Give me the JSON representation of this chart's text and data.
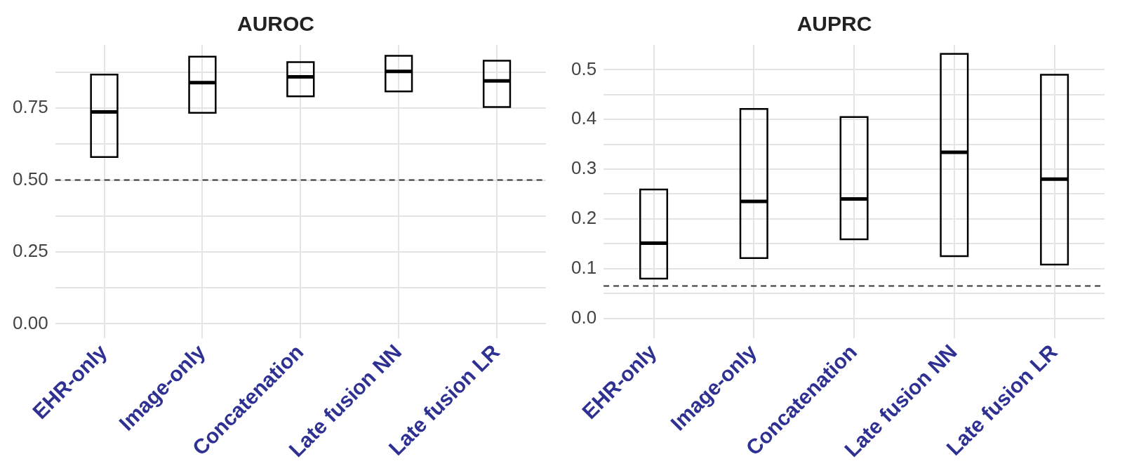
{
  "chart_data": [
    {
      "type": "box",
      "title": "AUROC",
      "categories": [
        "EHR-only",
        "Image-only",
        "Concatenation",
        "Late fusion NN",
        "Late fusion LR"
      ],
      "series": [
        {
          "color": "#000000",
          "boxes": [
            {
              "low": 0.58,
              "q1": 0.58,
              "median": 0.737,
              "q3": 0.867,
              "high": 0.867
            },
            {
              "low": 0.734,
              "q1": 0.734,
              "median": 0.839,
              "q3": 0.929,
              "high": 0.929
            },
            {
              "low": 0.791,
              "q1": 0.791,
              "median": 0.859,
              "q3": 0.91,
              "high": 0.91
            },
            {
              "low": 0.808,
              "q1": 0.808,
              "median": 0.878,
              "q3": 0.932,
              "high": 0.932
            },
            {
              "low": 0.754,
              "q1": 0.754,
              "median": 0.845,
              "q3": 0.915,
              "high": 0.915
            }
          ]
        }
      ],
      "ylim": [
        -0.05,
        0.97
      ],
      "yticks": [
        {
          "value": 0,
          "label": "0.00"
        },
        {
          "value": 0.125,
          "label": null
        },
        0.25,
        {
          "value": 0.375,
          "label": null
        },
        {
          "value": 0.5,
          "label": "0.50"
        },
        {
          "value": 0.625,
          "label": null
        },
        0.75,
        {
          "value": 0.875,
          "label": null
        }
      ],
      "ref_lines": [
        {
          "axis": "y",
          "value": 0.5,
          "color": "#333333",
          "line_style": "dashed"
        }
      ],
      "grid": true,
      "legend": false
    },
    {
      "type": "box",
      "title": "AUPRC",
      "categories": [
        "EHR-only",
        "Image-only",
        "Concatenation",
        "Late fusion NN",
        "Late fusion LR"
      ],
      "series": [
        {
          "color": "#000000",
          "boxes": [
            {
              "low": 0.08,
              "q1": 0.08,
              "median": 0.151,
              "q3": 0.259,
              "high": 0.259
            },
            {
              "low": 0.121,
              "q1": 0.121,
              "median": 0.235,
              "q3": 0.421,
              "high": 0.421
            },
            {
              "low": 0.159,
              "q1": 0.159,
              "median": 0.24,
              "q3": 0.405,
              "high": 0.405
            },
            {
              "low": 0.125,
              "q1": 0.125,
              "median": 0.334,
              "q3": 0.532,
              "high": 0.532
            },
            {
              "low": 0.108,
              "q1": 0.108,
              "median": 0.28,
              "q3": 0.49,
              "high": 0.49
            }
          ]
        }
      ],
      "ylim": [
        -0.04,
        0.55
      ],
      "yticks": [
        {
          "value": 0,
          "label": "0.0"
        },
        {
          "value": 0.05,
          "label": null
        },
        0.1,
        {
          "value": 0.15,
          "label": null
        },
        0.2,
        {
          "value": 0.25,
          "label": null
        },
        0.3,
        {
          "value": 0.35,
          "label": null
        },
        0.4,
        {
          "value": 0.45,
          "label": null
        },
        0.5
      ],
      "ref_lines": [
        {
          "axis": "y",
          "value": 0.065,
          "color": "#333333",
          "line_style": "dashed"
        }
      ],
      "grid": true,
      "legend": false
    }
  ]
}
